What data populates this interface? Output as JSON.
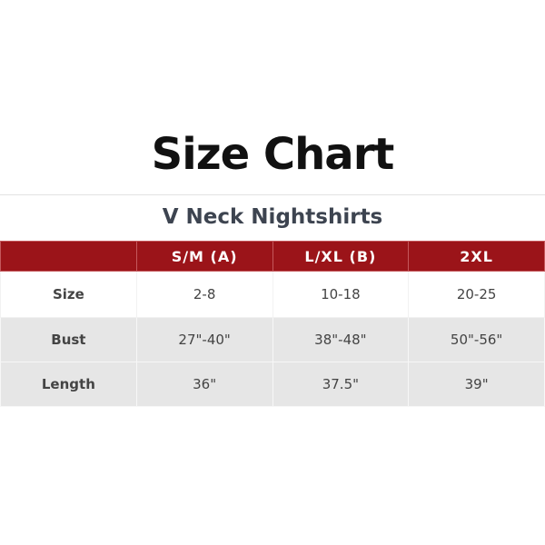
{
  "title": "Size Chart",
  "subtitle": "V Neck Nightshirts",
  "colors": {
    "header_bg": "#9b1419",
    "row_alt_bg": "#e6e6e6"
  },
  "table": {
    "headers": [
      "",
      "S/M (A)",
      "L/XL (B)",
      "2XL"
    ],
    "rows": [
      {
        "label": "Size",
        "values": [
          "2-8",
          "10-18",
          "20-25"
        ]
      },
      {
        "label": "Bust",
        "values": [
          "27\"-40\"",
          "38\"-48\"",
          "50\"-56\""
        ]
      },
      {
        "label": "Length",
        "values": [
          "36\"",
          "37.5\"",
          "39\""
        ]
      }
    ]
  }
}
